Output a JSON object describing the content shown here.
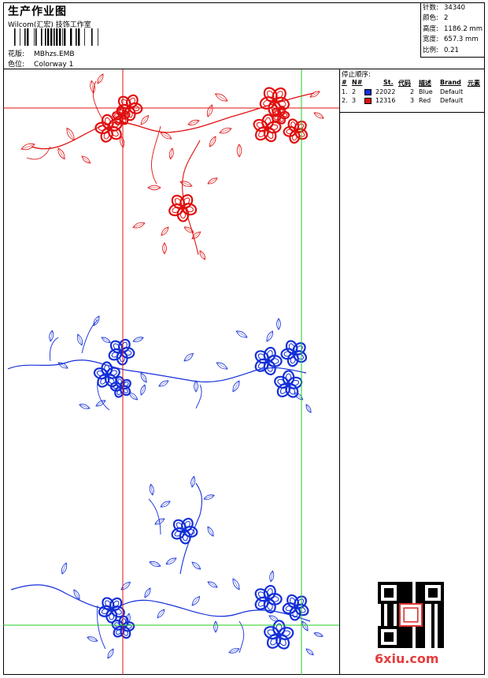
{
  "header": {
    "title": "生产作业图",
    "company": "Wilcom(汇宏) 技饰工作室",
    "design_label": "花版:",
    "design_value": "MBhzs.EMB",
    "colorway_label": "色位:",
    "colorway_value": "Colorway 1"
  },
  "stats": [
    {
      "label": "针数:",
      "value": "34340"
    },
    {
      "label": "颜色:",
      "value": "2"
    },
    {
      "label": "高度:",
      "value": "1186.2 mm"
    },
    {
      "label": "宽度:",
      "value": "657.3 mm"
    },
    {
      "label": "比例:",
      "value": "0.21"
    }
  ],
  "stop_sequence": {
    "title": "停止顺序:",
    "headers": {
      "num": "#",
      "n": "N#",
      "st": "St.",
      "code": "代码",
      "desc": "描述",
      "brand": "Brand",
      "elem": "元素"
    },
    "rows": [
      {
        "idx": "1.",
        "n": "2",
        "color": "#1530d8",
        "st": "22022",
        "code": "2",
        "desc": "Blue",
        "brand": "Default"
      },
      {
        "idx": "2.",
        "n": "3",
        "color": "#e01010",
        "st": "12316",
        "code": "3",
        "desc": "Red",
        "brand": "Default"
      }
    ]
  },
  "watermark": "6xiu.com",
  "colors": {
    "red": "#e01010",
    "blue": "#1530d8",
    "guide_green": "#22cc22",
    "guide_red": "#e01010"
  }
}
